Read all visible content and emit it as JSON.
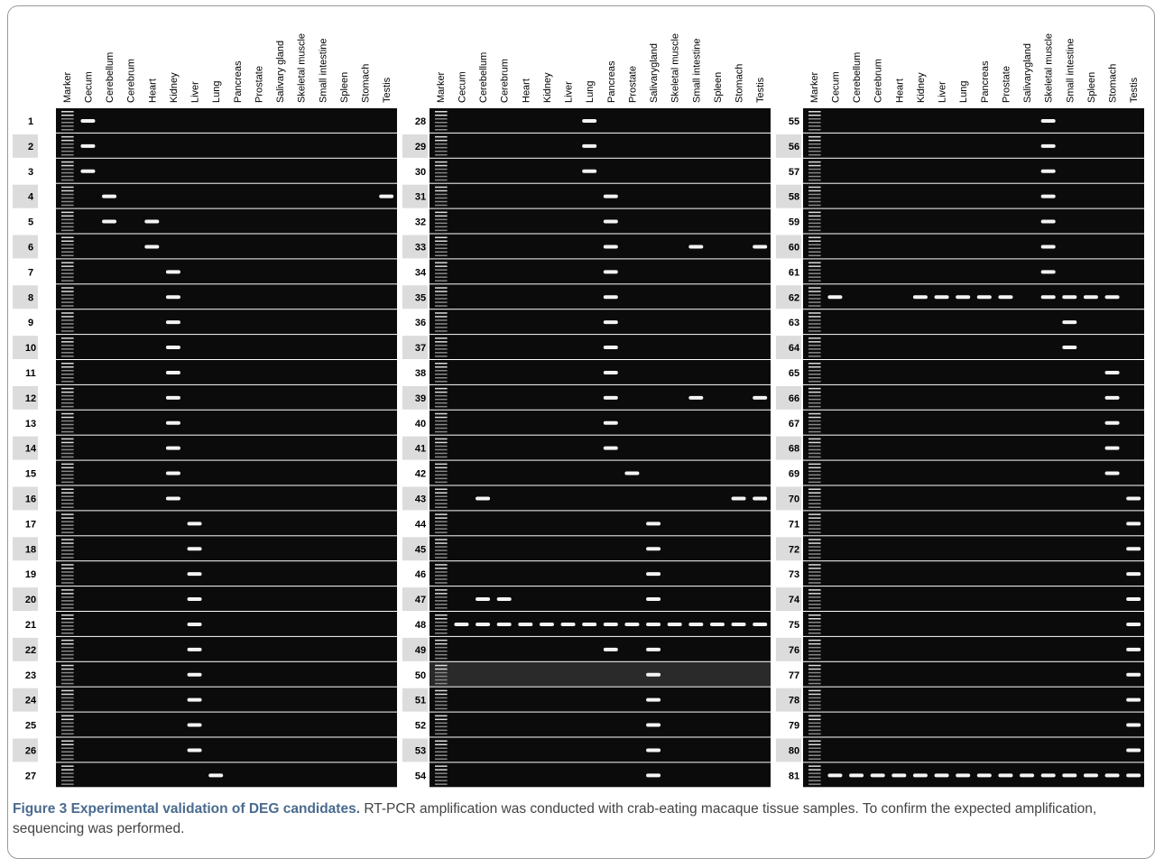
{
  "panels": [
    {
      "columns": [
        "Marker",
        "Cecum",
        "Cerebellum",
        "Cerebrum",
        "Heart",
        "Kidney",
        "Liver",
        "Lung",
        "Pancreas",
        "Prostate",
        "Salivary gland",
        "Skeletal muscle",
        "Small intestine",
        "Spleen",
        "Stomach",
        "Testis"
      ],
      "rows": [
        1,
        2,
        3,
        4,
        5,
        6,
        7,
        8,
        9,
        10,
        11,
        12,
        13,
        14,
        15,
        16,
        17,
        18,
        19,
        20,
        21,
        22,
        23,
        24,
        25,
        26,
        27
      ]
    },
    {
      "columns": [
        "Marker",
        "Cecum",
        "Cerebellum",
        "Cerebrum",
        "Heart",
        "Kidney",
        "Liver",
        "Lung",
        "Pancreas",
        "Prostate",
        "Salivarygland",
        "Skeletal muscle",
        "Small intestine",
        "Spleen",
        "Stomach",
        "Testis"
      ],
      "rows": [
        28,
        29,
        30,
        31,
        32,
        33,
        34,
        35,
        36,
        37,
        38,
        39,
        40,
        41,
        42,
        43,
        44,
        45,
        46,
        47,
        48,
        49,
        50,
        51,
        52,
        53,
        54
      ]
    },
    {
      "columns": [
        "Marker",
        "Cecum",
        "Cerebellum",
        "Cerebrum",
        "Heart",
        "Kidney",
        "Liver",
        "Lung",
        "Pancreas",
        "Prostate",
        "Salivarygland",
        "Skeletal muscle",
        "Small intestine",
        "Spleen",
        "Stomach",
        "Testis"
      ],
      "rows": [
        55,
        56,
        57,
        58,
        59,
        60,
        61,
        62,
        63,
        64,
        65,
        66,
        67,
        68,
        69,
        70,
        71,
        72,
        73,
        74,
        75,
        76,
        77,
        78,
        79,
        80,
        81
      ]
    }
  ],
  "caption": {
    "label": "Figure 3 Experimental validation of DEG candidates.",
    "text": "RT-PCR amplification was conducted with crab-eating macaque tissue samples. To confirm the expected amplification, sequencing was performed."
  }
}
